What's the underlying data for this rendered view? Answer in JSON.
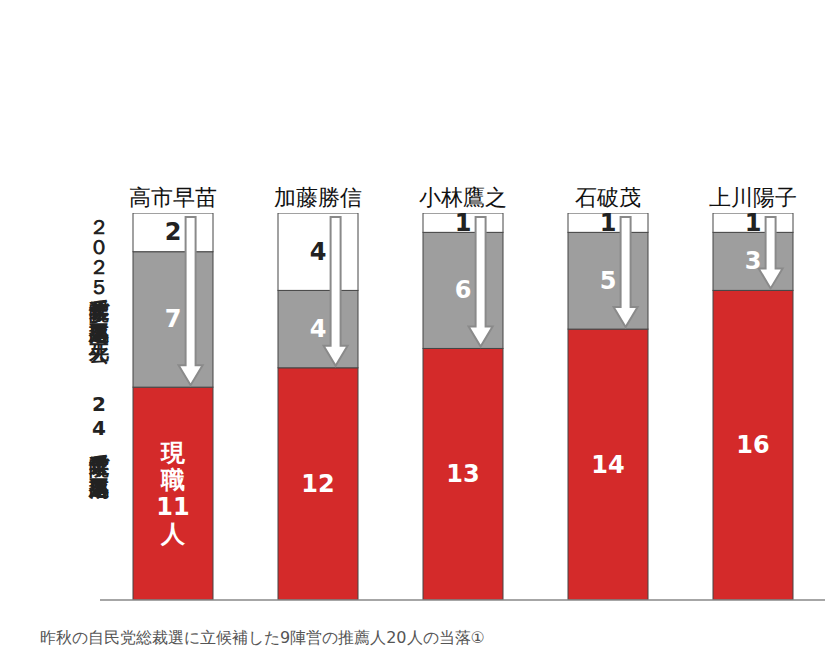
{
  "chart_data": {
    "type": "bar",
    "title": "昨秋の自民党総裁選に立候補した9陣営の推薦人20人の当落①",
    "categories": [
      "高市早苗",
      "加藤勝信",
      "小林鷹之",
      "石破茂",
      "上川陽子"
    ],
    "series": [
      {
        "name": "現職",
        "color": "#d42a2a",
        "values": [
          11,
          12,
          13,
          14,
          16
        ],
        "value_labels": [
          "現職11人",
          "12",
          "13",
          "14",
          "16"
        ]
      },
      {
        "name": "24年衆院選で落選・不出馬",
        "color": "#9e9e9e",
        "values": [
          7,
          4,
          6,
          5,
          3
        ]
      },
      {
        "name": "２０２５年参院選で落選・不出馬、死去",
        "color": "#ffffff",
        "values": [
          2,
          4,
          1,
          1,
          1
        ]
      }
    ],
    "stacked": true,
    "data_labels": true,
    "ylim": [
      0,
      20
    ],
    "tick_labels": "x"
  }
}
